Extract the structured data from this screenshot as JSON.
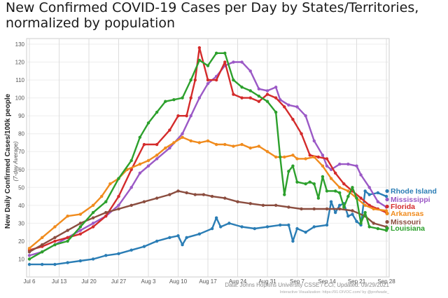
{
  "title_line1": "New Confirmed COVID-19 Cases per Day by States/Territories,",
  "title_line2": "normalized by population",
  "chart_data": {
    "type": "line",
    "ylabel": "New Daily Confirmed Cases/100k people",
    "ylabel_sub": "(7-day Average)",
    "ylim": [
      0,
      130
    ],
    "yticks": [
      10,
      20,
      30,
      40,
      50,
      60,
      70,
      80,
      90,
      100,
      110,
      120,
      130
    ],
    "xlim": [
      0,
      84
    ],
    "xticks": [
      {
        "x": 0,
        "label": "Jul 6"
      },
      {
        "x": 7,
        "label": "Jul 13"
      },
      {
        "x": 14,
        "label": "Jul 20"
      },
      {
        "x": 21,
        "label": "Jul 27"
      },
      {
        "x": 28,
        "label": "Aug 3"
      },
      {
        "x": 35,
        "label": "Aug 10"
      },
      {
        "x": 42,
        "label": "Aug 17"
      },
      {
        "x": 49,
        "label": "Aug 24"
      },
      {
        "x": 56,
        "label": "Aug 31"
      },
      {
        "x": 63,
        "label": "Sep 7"
      },
      {
        "x": 70,
        "label": "Sep 14"
      },
      {
        "x": 77,
        "label": "Sep 21"
      },
      {
        "x": 84,
        "label": "Sep 28"
      }
    ],
    "grid": true,
    "source": "Data: Johns Hopkins University CSSE / CCI; Updated: 09/29/2021",
    "source_sub": "Interactive Visualization: https://91-DIVOC.com/ by @profwade_",
    "series": [
      {
        "name": "Rhode Island",
        "color": "#2a7db5",
        "points": [
          [
            0,
            7
          ],
          [
            3,
            7
          ],
          [
            6,
            7
          ],
          [
            9,
            8
          ],
          [
            12,
            9
          ],
          [
            15,
            10
          ],
          [
            18,
            12
          ],
          [
            21,
            13
          ],
          [
            24,
            15
          ],
          [
            27,
            17
          ],
          [
            30,
            20
          ],
          [
            33,
            22
          ],
          [
            35,
            23
          ],
          [
            36,
            18
          ],
          [
            37,
            22
          ],
          [
            40,
            24
          ],
          [
            43,
            27
          ],
          [
            44,
            33
          ],
          [
            45,
            28
          ],
          [
            47,
            30
          ],
          [
            50,
            28
          ],
          [
            53,
            27
          ],
          [
            56,
            28
          ],
          [
            59,
            29
          ],
          [
            61,
            29
          ],
          [
            62,
            20
          ],
          [
            63,
            27
          ],
          [
            65,
            25
          ],
          [
            67,
            28
          ],
          [
            70,
            29
          ],
          [
            71,
            42
          ],
          [
            72,
            36
          ],
          [
            73,
            40
          ],
          [
            74,
            41
          ],
          [
            75,
            34
          ],
          [
            76,
            35
          ],
          [
            77,
            31
          ],
          [
            78,
            29
          ],
          [
            79,
            48
          ],
          [
            80,
            46
          ],
          [
            82,
            47
          ],
          [
            84,
            45
          ]
        ]
      },
      {
        "name": "Mississippi",
        "color": "#9b59c6",
        "points": [
          [
            0,
            12
          ],
          [
            3,
            14
          ],
          [
            6,
            18
          ],
          [
            9,
            22
          ],
          [
            12,
            26
          ],
          [
            15,
            30
          ],
          [
            18,
            34
          ],
          [
            21,
            40
          ],
          [
            24,
            50
          ],
          [
            26,
            58
          ],
          [
            28,
            62
          ],
          [
            30,
            66
          ],
          [
            33,
            72
          ],
          [
            36,
            80
          ],
          [
            38,
            90
          ],
          [
            40,
            100
          ],
          [
            42,
            108
          ],
          [
            44,
            112
          ],
          [
            46,
            118
          ],
          [
            48,
            120
          ],
          [
            50,
            120
          ],
          [
            52,
            115
          ],
          [
            54,
            105
          ],
          [
            56,
            104
          ],
          [
            58,
            106
          ],
          [
            59,
            99
          ],
          [
            61,
            96
          ],
          [
            63,
            95
          ],
          [
            65,
            90
          ],
          [
            67,
            76
          ],
          [
            69,
            68
          ],
          [
            70,
            62
          ],
          [
            71,
            60
          ],
          [
            73,
            63
          ],
          [
            75,
            63
          ],
          [
            77,
            62
          ],
          [
            78,
            57
          ],
          [
            80,
            50
          ],
          [
            82,
            42
          ],
          [
            84,
            39
          ]
        ]
      },
      {
        "name": "Florida",
        "color": "#d42b2b",
        "points": [
          [
            0,
            15
          ],
          [
            3,
            17
          ],
          [
            6,
            20
          ],
          [
            9,
            22
          ],
          [
            12,
            24
          ],
          [
            15,
            28
          ],
          [
            18,
            34
          ],
          [
            21,
            45
          ],
          [
            24,
            60
          ],
          [
            27,
            74
          ],
          [
            30,
            74
          ],
          [
            33,
            82
          ],
          [
            35,
            90
          ],
          [
            37,
            90
          ],
          [
            38,
            100
          ],
          [
            39,
            110
          ],
          [
            40,
            128
          ],
          [
            42,
            110
          ],
          [
            44,
            110
          ],
          [
            46,
            120
          ],
          [
            48,
            102
          ],
          [
            50,
            100
          ],
          [
            52,
            100
          ],
          [
            54,
            98
          ],
          [
            56,
            102
          ],
          [
            58,
            100
          ],
          [
            60,
            95
          ],
          [
            62,
            88
          ],
          [
            64,
            80
          ],
          [
            66,
            68
          ],
          [
            68,
            67
          ],
          [
            70,
            66
          ],
          [
            72,
            58
          ],
          [
            74,
            52
          ],
          [
            76,
            48
          ],
          [
            78,
            44
          ],
          [
            80,
            40
          ],
          [
            82,
            38
          ],
          [
            84,
            36
          ]
        ]
      },
      {
        "name": "Arkansas",
        "color": "#f08b1d",
        "points": [
          [
            0,
            16
          ],
          [
            3,
            22
          ],
          [
            6,
            28
          ],
          [
            9,
            34
          ],
          [
            12,
            35
          ],
          [
            15,
            40
          ],
          [
            17,
            45
          ],
          [
            19,
            52
          ],
          [
            21,
            55
          ],
          [
            23,
            60
          ],
          [
            26,
            63
          ],
          [
            28,
            65
          ],
          [
            30,
            68
          ],
          [
            32,
            72
          ],
          [
            34,
            75
          ],
          [
            36,
            78
          ],
          [
            38,
            76
          ],
          [
            40,
            75
          ],
          [
            42,
            76
          ],
          [
            44,
            74
          ],
          [
            46,
            74
          ],
          [
            48,
            73
          ],
          [
            50,
            74
          ],
          [
            52,
            72
          ],
          [
            54,
            73
          ],
          [
            56,
            70
          ],
          [
            58,
            67
          ],
          [
            60,
            67
          ],
          [
            62,
            68
          ],
          [
            63,
            66
          ],
          [
            65,
            66
          ],
          [
            67,
            67
          ],
          [
            69,
            62
          ],
          [
            71,
            55
          ],
          [
            73,
            50
          ],
          [
            75,
            48
          ],
          [
            77,
            44
          ],
          [
            79,
            40
          ],
          [
            81,
            38
          ],
          [
            84,
            37
          ]
        ]
      },
      {
        "name": "Missouri",
        "color": "#8b4d3f",
        "points": [
          [
            0,
            14
          ],
          [
            3,
            18
          ],
          [
            6,
            22
          ],
          [
            9,
            26
          ],
          [
            12,
            30
          ],
          [
            15,
            33
          ],
          [
            18,
            36
          ],
          [
            21,
            38
          ],
          [
            24,
            40
          ],
          [
            27,
            42
          ],
          [
            30,
            44
          ],
          [
            33,
            46
          ],
          [
            35,
            48
          ],
          [
            37,
            47
          ],
          [
            39,
            46
          ],
          [
            41,
            46
          ],
          [
            43,
            45
          ],
          [
            46,
            44
          ],
          [
            49,
            42
          ],
          [
            52,
            41
          ],
          [
            55,
            40
          ],
          [
            58,
            40
          ],
          [
            61,
            39
          ],
          [
            64,
            38
          ],
          [
            67,
            38
          ],
          [
            70,
            38
          ],
          [
            73,
            38
          ],
          [
            76,
            37
          ],
          [
            79,
            34
          ],
          [
            81,
            30
          ],
          [
            84,
            28
          ]
        ]
      },
      {
        "name": "Louisiana",
        "color": "#2ca02c",
        "points": [
          [
            0,
            10
          ],
          [
            3,
            14
          ],
          [
            6,
            18
          ],
          [
            9,
            20
          ],
          [
            12,
            28
          ],
          [
            15,
            36
          ],
          [
            18,
            42
          ],
          [
            21,
            55
          ],
          [
            24,
            65
          ],
          [
            26,
            78
          ],
          [
            28,
            86
          ],
          [
            30,
            92
          ],
          [
            32,
            98
          ],
          [
            34,
            99
          ],
          [
            36,
            100
          ],
          [
            38,
            110
          ],
          [
            40,
            121
          ],
          [
            42,
            118
          ],
          [
            44,
            125
          ],
          [
            46,
            125
          ],
          [
            48,
            110
          ],
          [
            50,
            106
          ],
          [
            52,
            104
          ],
          [
            54,
            101
          ],
          [
            56,
            98
          ],
          [
            58,
            92
          ],
          [
            59,
            67
          ],
          [
            60,
            46
          ],
          [
            61,
            59
          ],
          [
            62,
            62
          ],
          [
            63,
            53
          ],
          [
            65,
            52
          ],
          [
            66,
            53
          ],
          [
            67,
            52
          ],
          [
            68,
            44
          ],
          [
            69,
            56
          ],
          [
            70,
            48
          ],
          [
            72,
            48
          ],
          [
            73,
            47
          ],
          [
            74,
            39
          ],
          [
            75,
            45
          ],
          [
            76,
            50
          ],
          [
            77,
            44
          ],
          [
            78,
            30
          ],
          [
            79,
            36
          ],
          [
            80,
            28
          ],
          [
            82,
            27
          ],
          [
            84,
            26
          ]
        ]
      }
    ]
  }
}
